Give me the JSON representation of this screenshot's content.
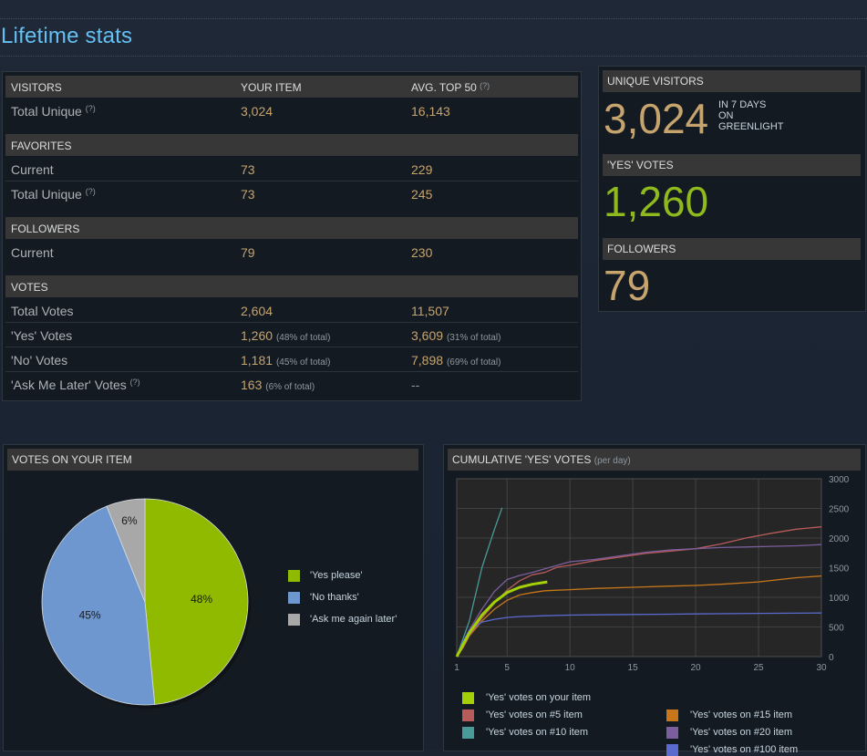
{
  "page": {
    "title": "Lifetime stats"
  },
  "stats_table": {
    "header": {
      "col1": "VISITORS",
      "col2": "YOUR ITEM",
      "col3": "AVG. TOP 50",
      "col3_hint": "(?)"
    },
    "visitors_rows": [
      {
        "label": "Total Unique",
        "hint": "(?)",
        "item": "3,024",
        "avg": "16,143"
      }
    ],
    "favorites": {
      "label": "FAVORITES",
      "rows": [
        {
          "label": "Current",
          "hint": "",
          "item": "73",
          "avg": "229"
        },
        {
          "label": "Total Unique",
          "hint": "(?)",
          "item": "73",
          "avg": "245"
        }
      ]
    },
    "followers": {
      "label": "FOLLOWERS",
      "rows": [
        {
          "label": "Current",
          "hint": "",
          "item": "79",
          "avg": "230"
        }
      ]
    },
    "votes": {
      "label": "VOTES",
      "rows": [
        {
          "label": "Total Votes",
          "hint": "",
          "item": "2,604",
          "item_pct": "",
          "avg": "11,507",
          "avg_pct": ""
        },
        {
          "label": "'Yes' Votes",
          "hint": "",
          "item": "1,260",
          "item_pct": "(48% of total)",
          "avg": "3,609",
          "avg_pct": "(31% of total)"
        },
        {
          "label": "'No' Votes",
          "hint": "",
          "item": "1,181",
          "item_pct": "(45% of total)",
          "avg": "7,898",
          "avg_pct": "(69% of total)"
        },
        {
          "label": "'Ask Me Later' Votes",
          "hint": "(?)",
          "item": "163",
          "item_pct": "(6% of total)",
          "avg": "--",
          "avg_pct": ""
        }
      ]
    }
  },
  "summary": {
    "unique_visitors": {
      "label": "UNIQUE VISITORS",
      "value": "3,024",
      "sub1": "IN 7 DAYS",
      "sub2": "ON",
      "sub3": "GREENLIGHT",
      "color": "#c6a46e"
    },
    "yes_votes": {
      "label": "'YES' VOTES",
      "value": "1,260",
      "color": "#8fba1e"
    },
    "followers": {
      "label": "FOLLOWERS",
      "value": "79",
      "color": "#c6a46e"
    }
  },
  "pie_panel": {
    "title": "VOTES ON YOUR ITEM"
  },
  "line_panel": {
    "title": "CUMULATIVE 'YES' VOTES",
    "title_suffix": "(per day)"
  },
  "chart_data": [
    {
      "type": "pie",
      "title": "VOTES ON YOUR ITEM",
      "slices": [
        {
          "name": "'Yes please'",
          "value": 48,
          "label": "48%",
          "color": "#8fba00"
        },
        {
          "name": "'No thanks'",
          "value": 45,
          "label": "45%",
          "color": "#6f97cf"
        },
        {
          "name": "'Ask me again later'",
          "value": 6,
          "label": "6%",
          "color": "#a8a8a8"
        }
      ]
    },
    {
      "type": "line",
      "title": "CUMULATIVE 'YES' VOTES",
      "xlim": [
        1,
        30
      ],
      "ylim": [
        0,
        3000
      ],
      "x_ticks": [
        1,
        5,
        10,
        15,
        20,
        25,
        30
      ],
      "y_ticks": [
        0,
        500,
        1000,
        1500,
        2000,
        2500,
        3000
      ],
      "grid": true,
      "legend_position": "bottom",
      "series": [
        {
          "name": "'Yes' votes on your item",
          "color": "#a4d007",
          "x": [
            1,
            1.5,
            2,
            3,
            4,
            5,
            6,
            7,
            8.2
          ],
          "y": [
            0,
            200,
            400,
            700,
            920,
            1080,
            1170,
            1220,
            1260
          ]
        },
        {
          "name": "'Yes' votes on #15 item",
          "color": "#c8761a",
          "x": [
            1,
            1.5,
            2,
            3,
            4,
            5,
            6,
            7,
            8,
            9,
            10,
            12,
            15,
            18,
            20,
            22,
            25,
            28,
            30
          ],
          "y": [
            0,
            150,
            350,
            600,
            800,
            950,
            1040,
            1080,
            1110,
            1120,
            1130,
            1150,
            1170,
            1190,
            1200,
            1220,
            1260,
            1330,
            1360
          ]
        },
        {
          "name": "'Yes' votes on #5 item",
          "color": "#b85b5b",
          "x": [
            1,
            1.5,
            2,
            3,
            4,
            5,
            6,
            7,
            8,
            9,
            10,
            12,
            14,
            16,
            18,
            20,
            22,
            24,
            26,
            28,
            30
          ],
          "y": [
            0,
            150,
            350,
            650,
            900,
            1120,
            1280,
            1380,
            1420,
            1510,
            1540,
            1620,
            1680,
            1740,
            1780,
            1820,
            1900,
            2000,
            2080,
            2150,
            2190
          ]
        },
        {
          "name": "'Yes' votes on #20 item",
          "color": "#7b5e9c",
          "x": [
            1,
            1.5,
            2,
            3,
            4,
            5,
            6,
            7,
            8,
            9,
            10,
            12,
            14,
            16,
            18,
            20,
            22,
            24,
            26,
            28,
            30
          ],
          "y": [
            0,
            200,
            450,
            800,
            1100,
            1300,
            1370,
            1420,
            1480,
            1540,
            1600,
            1640,
            1700,
            1760,
            1800,
            1820,
            1840,
            1850,
            1860,
            1870,
            1890
          ]
        },
        {
          "name": "'Yes' votes on #10 item",
          "color": "#4a9a9a",
          "x": [
            1,
            2,
            3,
            4,
            4.6
          ],
          "y": [
            0,
            600,
            1500,
            2150,
            2510
          ]
        },
        {
          "name": "'Yes' votes on #100 item",
          "color": "#5a6acf",
          "x": [
            1,
            1.5,
            2,
            3,
            4,
            5,
            6,
            8,
            10,
            12,
            15,
            18,
            20,
            25,
            30
          ],
          "y": [
            0,
            250,
            450,
            580,
            630,
            660,
            675,
            690,
            700,
            705,
            710,
            715,
            720,
            730,
            735
          ]
        }
      ]
    }
  ]
}
